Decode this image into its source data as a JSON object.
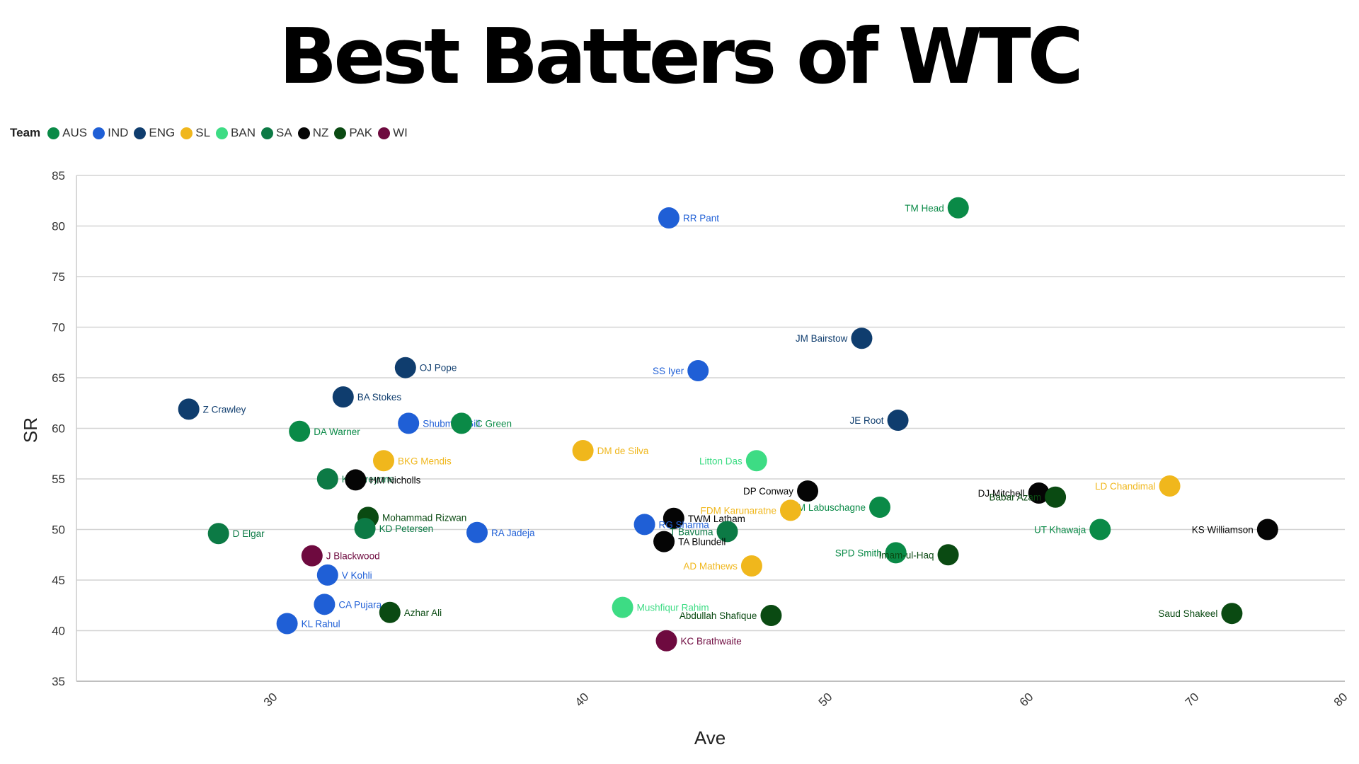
{
  "page": {
    "title": "Best Batters of WTC"
  },
  "legend": {
    "title": "Team",
    "items": [
      {
        "code": "AUS",
        "color": "#0a8a47"
      },
      {
        "code": "IND",
        "color": "#1f5fd6"
      },
      {
        "code": "ENG",
        "color": "#0f3d6e"
      },
      {
        "code": "SL",
        "color": "#f0b71c"
      },
      {
        "code": "BAN",
        "color": "#3ddc84"
      },
      {
        "code": "SA",
        "color": "#0c7a45"
      },
      {
        "code": "NZ",
        "color": "#050505"
      },
      {
        "code": "PAK",
        "color": "#0a4a12"
      },
      {
        "code": "WI",
        "color": "#6e0a3f"
      }
    ]
  },
  "chart_data": {
    "type": "scatter",
    "xlabel": "Ave",
    "ylabel": "SR",
    "xticks": [
      30,
      40,
      50,
      60,
      70,
      80
    ],
    "yticks": [
      35,
      40,
      45,
      50,
      55,
      60,
      65,
      70,
      75,
      80,
      85
    ],
    "ylim": [
      35,
      85
    ],
    "grid": true,
    "legend_position": "top-left",
    "points": [
      {
        "name": "TM Head",
        "team": "AUS",
        "x": 56.4,
        "y": 81.8,
        "label_side": "left"
      },
      {
        "name": "RR Pant",
        "team": "IND",
        "x": 43.4,
        "y": 80.8,
        "label_side": "right"
      },
      {
        "name": "JM Bairstow",
        "team": "ENG",
        "x": 51.6,
        "y": 68.9,
        "label_side": "left"
      },
      {
        "name": "OJ Pope",
        "team": "ENG",
        "x": 34.2,
        "y": 66.0,
        "label_side": "right"
      },
      {
        "name": "SS Iyer",
        "team": "IND",
        "x": 44.6,
        "y": 65.7,
        "label_side": "left"
      },
      {
        "name": "BA Stokes",
        "team": "ENG",
        "x": 32.2,
        "y": 63.1,
        "label_side": "right"
      },
      {
        "name": "Z Crawley",
        "team": "ENG",
        "x": 27.4,
        "y": 61.9,
        "label_side": "right"
      },
      {
        "name": "JE Root",
        "team": "ENG",
        "x": 53.4,
        "y": 60.8,
        "label_side": "left"
      },
      {
        "name": "Shubman Gill",
        "team": "IND",
        "x": 34.3,
        "y": 60.5,
        "label_side": "right"
      },
      {
        "name": "C Green",
        "team": "AUS",
        "x": 36.0,
        "y": 60.5,
        "label_side": "right"
      },
      {
        "name": "DA Warner",
        "team": "AUS",
        "x": 30.8,
        "y": 59.7,
        "label_side": "right"
      },
      {
        "name": "DM de Silva",
        "team": "SL",
        "x": 39.9,
        "y": 57.8,
        "label_side": "right"
      },
      {
        "name": "Litton Das",
        "team": "BAN",
        "x": 47.0,
        "y": 56.8,
        "label_side": "left"
      },
      {
        "name": "BKG Mendis",
        "team": "SL",
        "x": 33.5,
        "y": 56.8,
        "label_side": "right"
      },
      {
        "name": "K Verreynne",
        "team": "SA",
        "x": 31.7,
        "y": 55.0,
        "label_side": "right"
      },
      {
        "name": "HM Nicholls",
        "team": "NZ",
        "x": 32.6,
        "y": 54.9,
        "label_side": "right"
      },
      {
        "name": "LD Chandimal",
        "team": "SL",
        "x": 68.4,
        "y": 54.3,
        "label_side": "left"
      },
      {
        "name": "DP Conway",
        "team": "NZ",
        "x": 49.1,
        "y": 53.8,
        "label_side": "left"
      },
      {
        "name": "DJ Mitchell",
        "team": "NZ",
        "x": 60.5,
        "y": 53.6,
        "label_side": "left"
      },
      {
        "name": "Babar Azam",
        "team": "PAK",
        "x": 61.5,
        "y": 53.2,
        "label_side": "left"
      },
      {
        "name": "M Labuschagne",
        "team": "AUS",
        "x": 52.5,
        "y": 52.2,
        "label_side": "left"
      },
      {
        "name": "FDM Karunaratne",
        "team": "SL",
        "x": 48.4,
        "y": 51.9,
        "label_side": "left"
      },
      {
        "name": "Mohammad Rizwan",
        "team": "PAK",
        "x": 33.0,
        "y": 51.2,
        "label_side": "right"
      },
      {
        "name": "TWM Latham",
        "team": "NZ",
        "x": 43.6,
        "y": 51.1,
        "label_side": "right"
      },
      {
        "name": "RG Sharma",
        "team": "IND",
        "x": 42.4,
        "y": 50.5,
        "label_side": "right"
      },
      {
        "name": "KD Petersen",
        "team": "SA",
        "x": 32.9,
        "y": 50.1,
        "label_side": "right"
      },
      {
        "name": "UT Khawaja",
        "team": "AUS",
        "x": 64.2,
        "y": 50.0,
        "label_side": "left"
      },
      {
        "name": "KS Williamson",
        "team": "NZ",
        "x": 74.8,
        "y": 50.0,
        "label_side": "left"
      },
      {
        "name": "T Bavuma",
        "team": "SA",
        "x": 45.8,
        "y": 49.8,
        "label_side": "left"
      },
      {
        "name": "RA Jadeja",
        "team": "IND",
        "x": 36.5,
        "y": 49.7,
        "label_side": "right"
      },
      {
        "name": "D Elgar",
        "team": "SA",
        "x": 28.3,
        "y": 49.6,
        "label_side": "right"
      },
      {
        "name": "TA Blundell",
        "team": "NZ",
        "x": 43.2,
        "y": 48.8,
        "label_side": "right"
      },
      {
        "name": "SPD Smith",
        "team": "AUS",
        "x": 53.3,
        "y": 47.7,
        "label_side": "left"
      },
      {
        "name": "Imam-ul-Haq",
        "team": "PAK",
        "x": 55.9,
        "y": 47.5,
        "label_side": "left"
      },
      {
        "name": "J Blackwood",
        "team": "WI",
        "x": 31.2,
        "y": 47.4,
        "label_side": "right"
      },
      {
        "name": "AD Mathews",
        "team": "SL",
        "x": 46.8,
        "y": 46.4,
        "label_side": "left"
      },
      {
        "name": "V Kohli",
        "team": "IND",
        "x": 31.7,
        "y": 45.5,
        "label_side": "right"
      },
      {
        "name": "CA Pujara",
        "team": "IND",
        "x": 31.6,
        "y": 42.6,
        "label_side": "right"
      },
      {
        "name": "Mushfiqur Rahim",
        "team": "BAN",
        "x": 41.5,
        "y": 42.3,
        "label_side": "right"
      },
      {
        "name": "Azhar Ali",
        "team": "PAK",
        "x": 33.7,
        "y": 41.8,
        "label_side": "right"
      },
      {
        "name": "Saud Shakeel",
        "team": "PAK",
        "x": 72.4,
        "y": 41.7,
        "label_side": "left"
      },
      {
        "name": "Abdullah Shafique",
        "team": "PAK",
        "x": 47.6,
        "y": 41.5,
        "label_side": "left"
      },
      {
        "name": "KL Rahul",
        "team": "IND",
        "x": 30.4,
        "y": 40.7,
        "label_side": "right"
      },
      {
        "name": "KC Brathwaite",
        "team": "WI",
        "x": 43.3,
        "y": 39.0,
        "label_side": "right"
      }
    ]
  }
}
